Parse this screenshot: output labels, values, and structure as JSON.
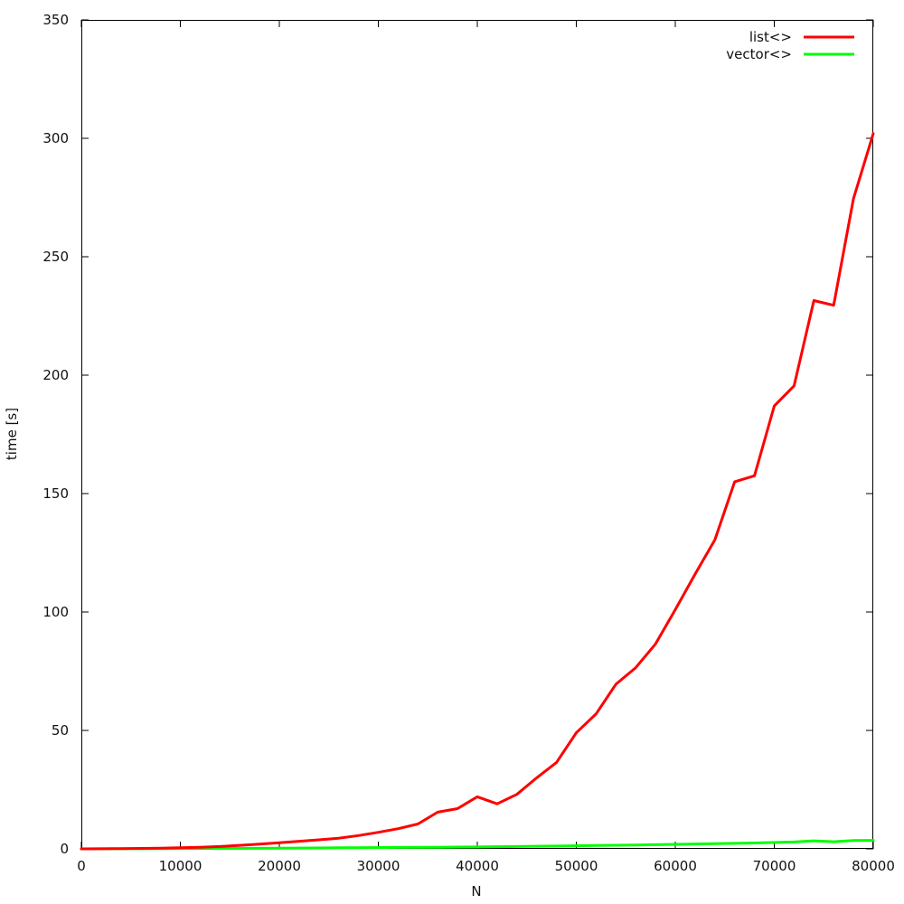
{
  "chart_data": {
    "type": "line",
    "title": "",
    "xlabel": "N",
    "ylabel": "time [s]",
    "xlim": [
      0,
      80000
    ],
    "ylim": [
      0,
      350
    ],
    "xticks": [
      0,
      10000,
      20000,
      30000,
      40000,
      50000,
      60000,
      70000,
      80000
    ],
    "yticks": [
      0,
      50,
      100,
      150,
      200,
      250,
      300,
      350
    ],
    "grid": false,
    "legend_position": "top-right",
    "series": [
      {
        "name": "list<>",
        "color": "#ff0000",
        "points": [
          [
            0,
            0
          ],
          [
            2000,
            0.05
          ],
          [
            4000,
            0.1
          ],
          [
            6000,
            0.2
          ],
          [
            8000,
            0.3
          ],
          [
            10000,
            0.5
          ],
          [
            12000,
            0.7
          ],
          [
            14000,
            1.0
          ],
          [
            16000,
            1.5
          ],
          [
            18000,
            2.0
          ],
          [
            20000,
            2.6
          ],
          [
            22000,
            3.2
          ],
          [
            24000,
            3.8
          ],
          [
            26000,
            4.5
          ],
          [
            28000,
            5.6
          ],
          [
            30000,
            7.0
          ],
          [
            32000,
            8.5
          ],
          [
            34000,
            10.5
          ],
          [
            36000,
            15.5
          ],
          [
            38000,
            17.0
          ],
          [
            40000,
            22.0
          ],
          [
            42000,
            19.0
          ],
          [
            44000,
            23.0
          ],
          [
            46000,
            30.0
          ],
          [
            48000,
            36.5
          ],
          [
            50000,
            49.0
          ],
          [
            52000,
            57.0
          ],
          [
            54000,
            69.5
          ],
          [
            56000,
            76.5
          ],
          [
            58000,
            86.5
          ],
          [
            60000,
            101.0
          ],
          [
            62000,
            116.0
          ],
          [
            64000,
            130.5
          ],
          [
            66000,
            155.0
          ],
          [
            68000,
            157.5
          ],
          [
            70000,
            187.0
          ],
          [
            72000,
            195.5
          ],
          [
            74000,
            231.5
          ],
          [
            76000,
            229.5
          ],
          [
            78000,
            274.5
          ],
          [
            80000,
            302.0
          ]
        ]
      },
      {
        "name": "vector<>",
        "color": "#00ff00",
        "points": [
          [
            0,
            0
          ],
          [
            4000,
            0.05
          ],
          [
            8000,
            0.1
          ],
          [
            12000,
            0.15
          ],
          [
            16000,
            0.2
          ],
          [
            20000,
            0.3
          ],
          [
            24000,
            0.4
          ],
          [
            28000,
            0.5
          ],
          [
            32000,
            0.6
          ],
          [
            36000,
            0.7
          ],
          [
            40000,
            0.8
          ],
          [
            44000,
            1.0
          ],
          [
            48000,
            1.2
          ],
          [
            52000,
            1.4
          ],
          [
            56000,
            1.6
          ],
          [
            60000,
            1.9
          ],
          [
            64000,
            2.2
          ],
          [
            68000,
            2.5
          ],
          [
            72000,
            2.9
          ],
          [
            74000,
            3.4
          ],
          [
            76000,
            3.0
          ],
          [
            78000,
            3.5
          ],
          [
            80000,
            3.6
          ]
        ]
      }
    ]
  }
}
